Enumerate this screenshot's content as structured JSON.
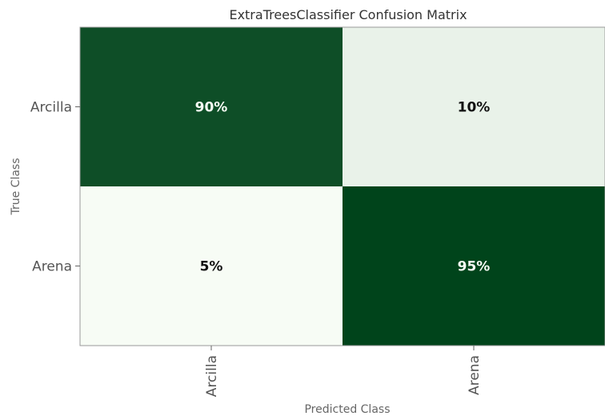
{
  "chart_data": {
    "type": "heatmap",
    "title": "ExtraTreesClassifier Confusion Matrix",
    "xlabel": "Predicted Class",
    "ylabel": "True Class",
    "x_categories": [
      "Arcilla",
      "Arena"
    ],
    "y_categories": [
      "Arcilla",
      "Arena"
    ],
    "values": [
      [
        90,
        10
      ],
      [
        5,
        95
      ]
    ],
    "value_labels": [
      [
        "90%",
        "10%"
      ],
      [
        "5%",
        "95%"
      ]
    ],
    "colors": {
      "high": "#00441b",
      "low": "#f7fcf5",
      "text_on_dark": "#f7fcf5",
      "text_on_light": "#111111"
    }
  }
}
